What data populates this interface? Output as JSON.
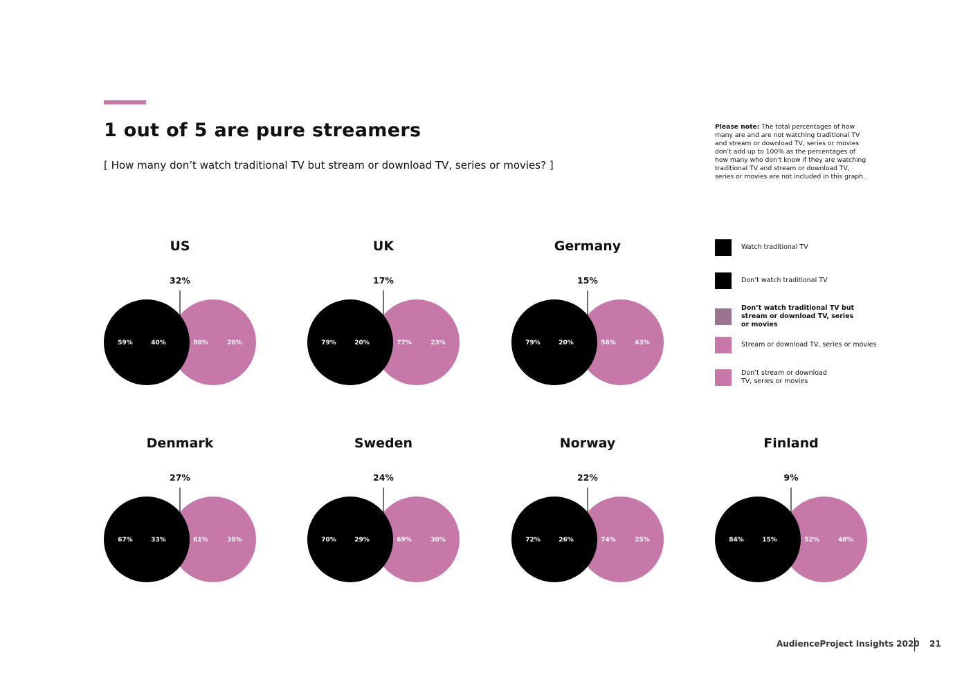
{
  "header": {
    "title": "1 out of 5 are pure streamers",
    "subtitle": "[ How many don’t watch traditional TV but stream or download TV, series or movies? ]"
  },
  "note": {
    "label": "Please note:",
    "text": "The total percentages of how many are and are not watching traditional TV and stream or download TV, series or movies don’t add up to 100% as the percentages of how many who don’t know if they are watching traditional TV and stream or download TV, series or movies are not included in this graph."
  },
  "legend": [
    {
      "label": "Watch traditional TV",
      "color": "#000000"
    },
    {
      "label": "Don’t watch traditional TV",
      "color": "#000000"
    },
    {
      "label": "Don’t watch traditional TV but stream or download TV, series or movies",
      "color": "#9b7590"
    },
    {
      "label": "Stream or download TV, series or movies",
      "color": "#c678a8"
    },
    {
      "label": "Don’t stream or download TV, series or movies",
      "color": "#c678a8"
    }
  ],
  "colors": {
    "tv": "#000000",
    "stream": "#c678a8",
    "overlap": "#9b7590",
    "accent": "#c678a8"
  },
  "chart_data": {
    "type": "venn",
    "series_fields": [
      "watch_tv",
      "dont_watch_tv",
      "stream",
      "dont_stream",
      "pure_streamers"
    ],
    "countries": [
      {
        "name": "US",
        "pure_streamers": "32%",
        "watch_tv": "59%",
        "dont_watch_tv": "40%",
        "stream": "80%",
        "dont_stream": "20%"
      },
      {
        "name": "UK",
        "pure_streamers": "17%",
        "watch_tv": "79%",
        "dont_watch_tv": "20%",
        "stream": "77%",
        "dont_stream": "23%"
      },
      {
        "name": "Germany",
        "pure_streamers": "15%",
        "watch_tv": "79%",
        "dont_watch_tv": "20%",
        "stream": "56%",
        "dont_stream": "43%"
      },
      {
        "name": "Denmark",
        "pure_streamers": "27%",
        "watch_tv": "67%",
        "dont_watch_tv": "33%",
        "stream": "61%",
        "dont_stream": "38%"
      },
      {
        "name": "Sweden",
        "pure_streamers": "24%",
        "watch_tv": "70%",
        "dont_watch_tv": "29%",
        "stream": "69%",
        "dont_stream": "30%"
      },
      {
        "name": "Norway",
        "pure_streamers": "22%",
        "watch_tv": "72%",
        "dont_watch_tv": "26%",
        "stream": "74%",
        "dont_stream": "25%"
      },
      {
        "name": "Finland",
        "pure_streamers": "9%",
        "watch_tv": "84%",
        "dont_watch_tv": "15%",
        "stream": "52%",
        "dont_stream": "48%"
      }
    ]
  },
  "footer": {
    "brand": "AudienceProject Insights 2020",
    "page": "21"
  }
}
